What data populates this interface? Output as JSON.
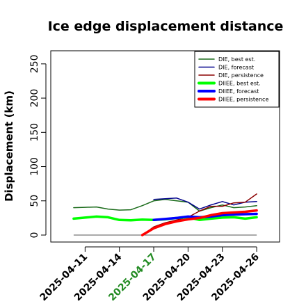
{
  "chart_data": {
    "type": "line",
    "title": "Ice edge displacement distance",
    "xlabel": "",
    "ylabel": "Displacement (km)",
    "ylim": [
      0,
      260
    ],
    "yticks": [
      0,
      50,
      100,
      150,
      200,
      250
    ],
    "xlim": [
      "2025-04-08",
      "2025-04-28"
    ],
    "xticks": [
      "2025-04-11",
      "2025-04-14",
      "2025-04-17",
      "2025-04-20",
      "2025-04-23",
      "2025-04-26"
    ],
    "highlight_tick": "2025-04-17",
    "highlight_color": "#228B22",
    "grid": false,
    "legend_position": "top-right",
    "reference_line": {
      "y": 0,
      "x": [
        "2025-04-10",
        "2025-04-26"
      ],
      "color": "#555555"
    },
    "series": [
      {
        "name": "DIE, best est.",
        "color": "#1a6b1a",
        "width": 1.5,
        "points": [
          [
            "2025-04-10",
            40
          ],
          [
            "2025-04-11",
            40.5
          ],
          [
            "2025-04-12",
            41
          ],
          [
            "2025-04-13",
            38
          ],
          [
            "2025-04-14",
            36.5
          ],
          [
            "2025-04-15",
            37
          ],
          [
            "2025-04-16",
            43
          ],
          [
            "2025-04-17",
            50
          ],
          [
            "2025-04-18",
            52
          ],
          [
            "2025-04-19",
            50
          ],
          [
            "2025-04-20",
            48
          ],
          [
            "2025-04-21",
            35
          ],
          [
            "2025-04-22",
            40
          ],
          [
            "2025-04-23",
            44
          ],
          [
            "2025-04-24",
            40
          ],
          [
            "2025-04-25",
            41
          ],
          [
            "2025-04-26",
            43
          ]
        ]
      },
      {
        "name": "DIE, forecast",
        "color": "#00008b",
        "width": 1.5,
        "points": [
          [
            "2025-04-17",
            52
          ],
          [
            "2025-04-19",
            54
          ],
          [
            "2025-04-20",
            48
          ],
          [
            "2025-04-21",
            38
          ],
          [
            "2025-04-22",
            44
          ],
          [
            "2025-04-23",
            49
          ],
          [
            "2025-04-24",
            44
          ],
          [
            "2025-04-25",
            48
          ],
          [
            "2025-04-26",
            49
          ]
        ]
      },
      {
        "name": "DIE, persistence",
        "color": "#8b0000",
        "width": 1.5,
        "points": [
          [
            "2025-04-16",
            0
          ],
          [
            "2025-04-17",
            12
          ],
          [
            "2025-04-18",
            18
          ],
          [
            "2025-04-19",
            22
          ],
          [
            "2025-04-20",
            26
          ],
          [
            "2025-04-21",
            35
          ],
          [
            "2025-04-22",
            42
          ],
          [
            "2025-04-23",
            42
          ],
          [
            "2025-04-24",
            47
          ],
          [
            "2025-04-25",
            48
          ],
          [
            "2025-04-26",
            60
          ]
        ]
      },
      {
        "name": "DIIEE, best est.",
        "color": "#00ff00",
        "width": 3.5,
        "points": [
          [
            "2025-04-10",
            24
          ],
          [
            "2025-04-11",
            25.5
          ],
          [
            "2025-04-12",
            27
          ],
          [
            "2025-04-13",
            26
          ],
          [
            "2025-04-14",
            22
          ],
          [
            "2025-04-15",
            21.5
          ],
          [
            "2025-04-16",
            22.5
          ],
          [
            "2025-04-17",
            22
          ],
          [
            "2025-04-18",
            23
          ],
          [
            "2025-04-19",
            25
          ],
          [
            "2025-04-20",
            26
          ],
          [
            "2025-04-21",
            22
          ],
          [
            "2025-04-22",
            24
          ],
          [
            "2025-04-23",
            25.5
          ],
          [
            "2025-04-24",
            26
          ],
          [
            "2025-04-25",
            24
          ],
          [
            "2025-04-26",
            26
          ]
        ]
      },
      {
        "name": "DIIEE, forecast",
        "color": "#0000ff",
        "width": 3.5,
        "points": [
          [
            "2025-04-17",
            22
          ],
          [
            "2025-04-18",
            23.5
          ],
          [
            "2025-04-19",
            25
          ],
          [
            "2025-04-20",
            27
          ],
          [
            "2025-04-21",
            26
          ],
          [
            "2025-04-22",
            27
          ],
          [
            "2025-04-23",
            29
          ],
          [
            "2025-04-24",
            30
          ],
          [
            "2025-04-25",
            30.5
          ],
          [
            "2025-04-26",
            31
          ]
        ]
      },
      {
        "name": "DIIEE, persistence",
        "color": "#ff0000",
        "width": 3.5,
        "points": [
          [
            "2025-04-16",
            0
          ],
          [
            "2025-04-17",
            10
          ],
          [
            "2025-04-18",
            16
          ],
          [
            "2025-04-19",
            20
          ],
          [
            "2025-04-20",
            23
          ],
          [
            "2025-04-21",
            25
          ],
          [
            "2025-04-22",
            29
          ],
          [
            "2025-04-23",
            32
          ],
          [
            "2025-04-24",
            33
          ],
          [
            "2025-04-25",
            34
          ],
          [
            "2025-04-26",
            36
          ]
        ]
      }
    ]
  }
}
